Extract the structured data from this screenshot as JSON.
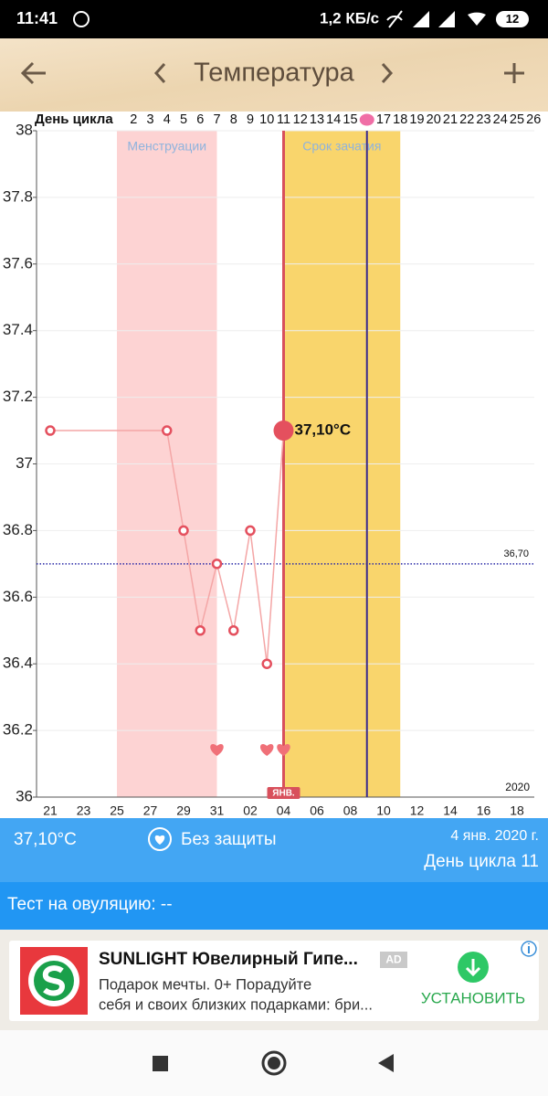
{
  "status_bar": {
    "time": "11:41",
    "speed": "1,2 КБ/с",
    "battery": "12"
  },
  "app_bar": {
    "title": "Температура"
  },
  "chart_data": {
    "type": "line",
    "cycle_day_label": "День цикла",
    "cycle_days": [
      null,
      null,
      null,
      null,
      null,
      2,
      3,
      4,
      5,
      6,
      7,
      8,
      9,
      10,
      11,
      12,
      13,
      14,
      15,
      null,
      17,
      18,
      19,
      20,
      21,
      22,
      23,
      24,
      25,
      26
    ],
    "categories": [
      "21",
      null,
      "23",
      null,
      "25",
      null,
      "27",
      null,
      "29",
      null,
      "31",
      null,
      "02",
      null,
      "04",
      null,
      "06",
      null,
      "08",
      null,
      "10",
      null,
      "12",
      null,
      "14",
      null,
      "16",
      null,
      "18",
      null
    ],
    "values": [
      37.1,
      null,
      null,
      null,
      null,
      null,
      null,
      37.1,
      36.8,
      36.5,
      36.7,
      36.5,
      36.8,
      36.4,
      37.1,
      null,
      null,
      null,
      null,
      null,
      null,
      null,
      null,
      null,
      null,
      null,
      null,
      null,
      null,
      null
    ],
    "value_labels": [
      null,
      null,
      null,
      null,
      null,
      null,
      null,
      null,
      null,
      null,
      null,
      null,
      null,
      null,
      "37,10°С",
      null,
      null,
      null,
      null,
      null,
      null,
      null,
      null,
      null,
      null,
      null,
      null,
      null,
      null,
      null
    ],
    "color": "#f4a6a6",
    "marker_color": "#e4505e",
    "highlight_index": 14,
    "today_index": 14,
    "ovulation_index": 19,
    "month_label": "ЯНВ.",
    "year_label": "2020",
    "ylim": [
      36,
      38
    ],
    "yticks": [
      36,
      36.2,
      36.4,
      36.6,
      36.8,
      37,
      37.2,
      37.4,
      37.6,
      37.8,
      38
    ],
    "grid": true,
    "bands": [
      {
        "label": "Менструации",
        "start": 4,
        "end": 10,
        "color": "#fdd3d3"
      },
      {
        "label": "Срок зачатия",
        "start": 14,
        "end": 21,
        "color": "#f9d56c"
      }
    ],
    "reference_line": {
      "value": 36.7,
      "label": "36,70",
      "color": "#2a2aa8"
    },
    "heart_days": [
      10,
      13,
      14
    ]
  },
  "summary": {
    "temperature": "37,10°С",
    "protection": "Без защиты",
    "date": "4 янв. 2020 г.",
    "cycle_day": "День цикла 11"
  },
  "ovulation_test": "Тест на овуляцию: --",
  "ad": {
    "title": "SUNLIGHT Ювелирный Гипе...",
    "badge": "AD",
    "text": [
      "Подарок мечты. 0+ Порадуйте",
      "себя и своих близких подарками: бри..."
    ],
    "button": "УСТАНОВИТЬ"
  }
}
